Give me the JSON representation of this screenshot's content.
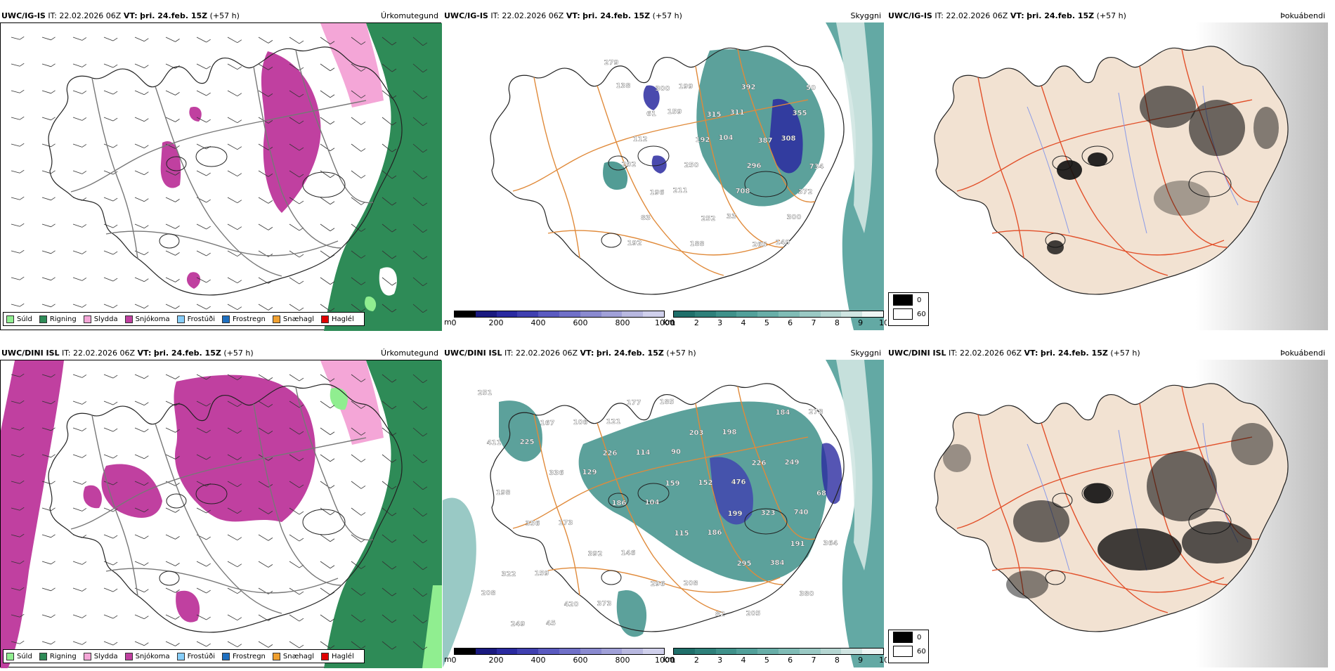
{
  "panels": [
    {
      "row": 0,
      "col": 0,
      "model": "UWC/IG-IS",
      "it_label": "IT:",
      "it_value": "22.02.2026 06Z",
      "vt_label": "VT:",
      "vt_value": "þri. 24.feb. 15Z",
      "offset": "(+57 h)",
      "field": "Úrkomutegund"
    },
    {
      "row": 0,
      "col": 1,
      "model": "UWC/IG-IS",
      "it_label": "IT:",
      "it_value": "22.02.2026 06Z",
      "vt_label": "VT:",
      "vt_value": "þri. 24.feb. 15Z",
      "offset": "(+57 h)",
      "field": "Skyggni"
    },
    {
      "row": 0,
      "col": 2,
      "model": "UWC/IG-IS",
      "it_label": "IT:",
      "it_value": "22.02.2026 06Z",
      "vt_label": "VT:",
      "vt_value": "þri. 24.feb. 15Z",
      "offset": "(+57 h)",
      "field": "Þokuábendi"
    },
    {
      "row": 1,
      "col": 0,
      "model": "UWC/DINI ISL",
      "it_label": "IT:",
      "it_value": "22.02.2026 06Z",
      "vt_label": "VT:",
      "vt_value": "þri. 24.feb. 15Z",
      "offset": "(+57 h)",
      "field": "Úrkomutegund"
    },
    {
      "row": 1,
      "col": 1,
      "model": "UWC/DINI ISL",
      "it_label": "IT:",
      "it_value": "22.02.2026 06Z",
      "vt_label": "VT:",
      "vt_value": "þri. 24.feb. 15Z",
      "offset": "(+57 h)",
      "field": "Skyggni"
    },
    {
      "row": 1,
      "col": 2,
      "model": "UWC/DINI ISL",
      "it_label": "IT:",
      "it_value": "22.02.2026 06Z",
      "vt_label": "VT:",
      "vt_value": "þri. 24.feb. 15Z",
      "offset": "(+57 h)",
      "field": "Þokuábendi"
    }
  ],
  "precip_legend": [
    {
      "label": "Súld",
      "color": "#90ee90"
    },
    {
      "label": "Rigning",
      "color": "#2e8b57"
    },
    {
      "label": "Slydda",
      "color": "#f4a6d7"
    },
    {
      "label": "Snjókoma",
      "color": "#c040a0"
    },
    {
      "label": "Frostúði",
      "color": "#87cefa"
    },
    {
      "label": "Frostregn",
      "color": "#1e6fc0"
    },
    {
      "label": "Snæhagl",
      "color": "#f0a030"
    },
    {
      "label": "Haglél",
      "color": "#e00000"
    }
  ],
  "vis_m_bar": {
    "unit": "m",
    "ticks": [
      "0",
      "200",
      "400",
      "600",
      "800",
      "1000"
    ],
    "colors": [
      "#000000",
      "#1a1a80",
      "#2a2aa0",
      "#4040b0",
      "#5a5ac0",
      "#7070c8",
      "#8a8ad0",
      "#a0a0d8",
      "#b8b8e0",
      "#d0d0ec"
    ]
  },
  "vis_km_bar": {
    "unit": "km",
    "ticks": [
      "1",
      "2",
      "3",
      "4",
      "5",
      "6",
      "7",
      "8",
      "9",
      "10"
    ],
    "colors": [
      "#1f6f6a",
      "#2e807a",
      "#3f918a",
      "#52a09a",
      "#68aea8",
      "#80bcb6",
      "#9ac9c4",
      "#b5d6d2",
      "#d0e5e2",
      "#eef5f4"
    ]
  },
  "fog_legend": [
    {
      "label": "0",
      "color": "#000000"
    },
    {
      "label": "60",
      "color": "#ffffff"
    }
  ],
  "vis_labels_top": [
    "279",
    "300",
    "315",
    "387",
    "734",
    "196",
    "252",
    "265",
    "50",
    "61",
    "192",
    "296",
    "372",
    "83",
    "188",
    "392",
    "355",
    "112",
    "250",
    "708",
    "300",
    "192",
    "199",
    "311",
    "308",
    "202",
    "211",
    "33",
    "149",
    "138",
    "159",
    "104"
  ],
  "vis_labels_bottom": [
    "251",
    "167",
    "226",
    "159",
    "199",
    "191",
    "322",
    "420",
    "177",
    "203",
    "226",
    "68",
    "356",
    "392",
    "296",
    "82",
    "184",
    "411",
    "336",
    "186",
    "115",
    "295",
    "380",
    "249",
    "106",
    "114",
    "152",
    "323",
    "364",
    "159",
    "373",
    "185",
    "198",
    "249",
    "198",
    "173",
    "146",
    "208",
    "205",
    "278",
    "225",
    "129",
    "104",
    "186",
    "384",
    "208",
    "45",
    "121",
    "90",
    "476",
    "740"
  ]
}
